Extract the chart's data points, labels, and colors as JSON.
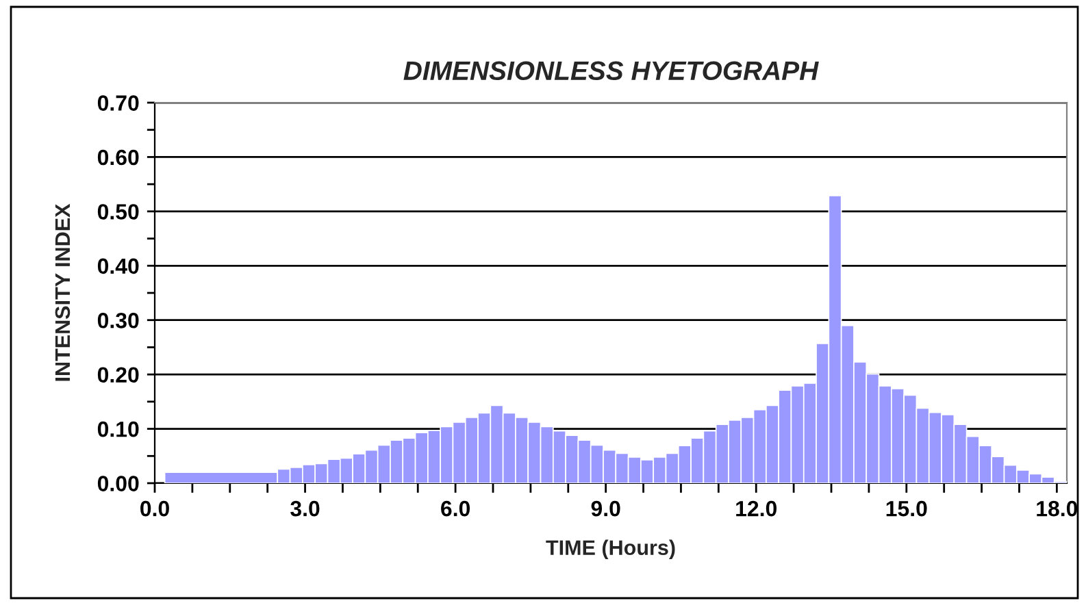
{
  "chart_data": {
    "type": "histogram",
    "title": "DIMENSIONLESS HYETOGRAPH",
    "xlabel": "TIME (Hours)",
    "ylabel": "INTENSITY INDEX",
    "bins": [
      0.2,
      2.45,
      2.7,
      2.95,
      3.2,
      3.45,
      3.7,
      3.95,
      4.2,
      4.45,
      4.7,
      4.95,
      5.2,
      5.45,
      5.7,
      5.95,
      6.2,
      6.45,
      6.7,
      6.95,
      7.2,
      7.45,
      7.7,
      7.95,
      8.2,
      8.45,
      8.7,
      8.95,
      9.2,
      9.45,
      9.7,
      9.95,
      10.2,
      10.45,
      10.7,
      10.95,
      11.2,
      11.45,
      11.7,
      11.95,
      12.2,
      12.45,
      12.7,
      12.95,
      13.2,
      13.45,
      13.7,
      13.95,
      14.2,
      14.45,
      14.7,
      14.95,
      15.2,
      15.45,
      15.7,
      15.95,
      16.2,
      16.45,
      16.7,
      16.95,
      17.2,
      17.45,
      17.7,
      17.95,
      18.2
    ],
    "values": [
      0.02,
      0.026,
      0.029,
      0.034,
      0.036,
      0.044,
      0.046,
      0.054,
      0.061,
      0.07,
      0.079,
      0.083,
      0.093,
      0.097,
      0.104,
      0.112,
      0.121,
      0.129,
      0.143,
      0.129,
      0.121,
      0.112,
      0.104,
      0.096,
      0.088,
      0.079,
      0.07,
      0.061,
      0.055,
      0.048,
      0.043,
      0.048,
      0.055,
      0.069,
      0.083,
      0.096,
      0.108,
      0.116,
      0.121,
      0.135,
      0.143,
      0.171,
      0.179,
      0.184,
      0.257,
      0.529,
      0.29,
      0.223,
      0.201,
      0.179,
      0.174,
      0.162,
      0.138,
      0.13,
      0.126,
      0.108,
      0.086,
      0.069,
      0.049,
      0.033,
      0.024,
      0.017,
      0.011,
      0.003
    ],
    "color": "#9999ff",
    "xlim": [
      0,
      18.2
    ],
    "ylim": [
      0,
      0.7
    ],
    "xticks": [
      {
        "value": 0,
        "label": "0.0"
      },
      {
        "value": 0.75,
        "label": null
      },
      {
        "value": 1.5,
        "label": null
      },
      {
        "value": 2.25,
        "label": null
      },
      {
        "value": 3,
        "label": "3.0"
      },
      {
        "value": 3.75,
        "label": null
      },
      {
        "value": 4.5,
        "label": null
      },
      {
        "value": 5.25,
        "label": null
      },
      {
        "value": 6,
        "label": "6.0"
      },
      {
        "value": 6.75,
        "label": null
      },
      {
        "value": 7.5,
        "label": null
      },
      {
        "value": 8.25,
        "label": null
      },
      {
        "value": 9,
        "label": "9.0"
      },
      {
        "value": 9.75,
        "label": null
      },
      {
        "value": 10.5,
        "label": null
      },
      {
        "value": 11.25,
        "label": null
      },
      {
        "value": 12,
        "label": "12.0"
      },
      {
        "value": 12.75,
        "label": null
      },
      {
        "value": 13.5,
        "label": null
      },
      {
        "value": 14.25,
        "label": null
      },
      {
        "value": 15,
        "label": "15.0"
      },
      {
        "value": 15.75,
        "label": null
      },
      {
        "value": 16.5,
        "label": null
      },
      {
        "value": 17.25,
        "label": null
      },
      {
        "value": 18,
        "label": "18.0"
      }
    ],
    "yticks": [
      {
        "value": 0,
        "label": "0.00"
      },
      {
        "value": 0.05,
        "label": null
      },
      {
        "value": 0.1,
        "label": "0.10"
      },
      {
        "value": 0.15,
        "label": null
      },
      {
        "value": 0.2,
        "label": "0.20"
      },
      {
        "value": 0.25,
        "label": null
      },
      {
        "value": 0.3,
        "label": "0.30"
      },
      {
        "value": 0.35,
        "label": null
      },
      {
        "value": 0.4,
        "label": "0.40"
      },
      {
        "value": 0.45,
        "label": null
      },
      {
        "value": 0.5,
        "label": "0.50"
      },
      {
        "value": 0.55,
        "label": null
      },
      {
        "value": 0.6,
        "label": "0.60"
      },
      {
        "value": 0.65,
        "label": null
      },
      {
        "value": 0.7,
        "label": "0.70"
      }
    ],
    "grid": "y",
    "legend": false
  }
}
